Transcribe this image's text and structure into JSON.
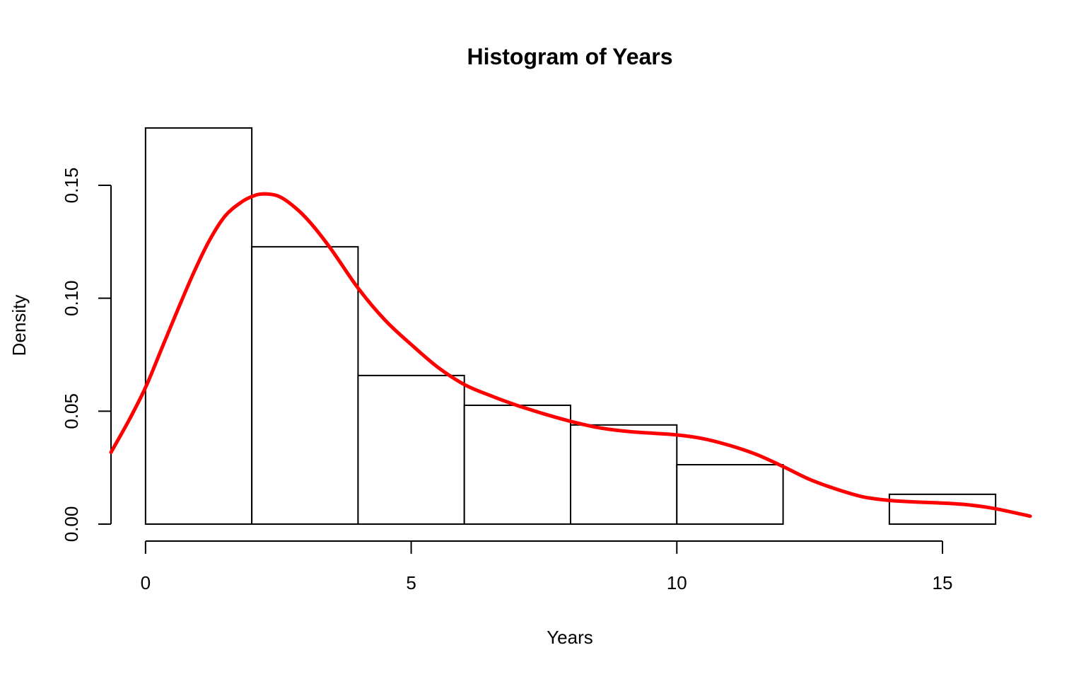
{
  "chart_data": {
    "type": "bar",
    "title": "Histogram of Years",
    "xlabel": "Years",
    "ylabel": "Density",
    "xlim": [
      -0.65,
      16.65
    ],
    "ylim": [
      0,
      0.176
    ],
    "x_ticks": [
      0,
      5,
      10,
      15
    ],
    "x_tick_labels": [
      "0",
      "5",
      "10",
      "15"
    ],
    "y_ticks": [
      0,
      0.05,
      0.1,
      0.15
    ],
    "y_tick_labels": [
      "0.00",
      "0.05",
      "0.10",
      "0.15"
    ],
    "bins": [
      {
        "from": 0,
        "to": 2,
        "density": 0.1754
      },
      {
        "from": 2,
        "to": 4,
        "density": 0.1228
      },
      {
        "from": 4,
        "to": 6,
        "density": 0.0658
      },
      {
        "from": 6,
        "to": 8,
        "density": 0.0526
      },
      {
        "from": 8,
        "to": 10,
        "density": 0.0439
      },
      {
        "from": 10,
        "to": 12,
        "density": 0.0263
      },
      {
        "from": 12,
        "to": 14,
        "density": 0
      },
      {
        "from": 14,
        "to": 16,
        "density": 0.0132
      }
    ],
    "series": [
      {
        "type": "line",
        "color": "#ff0000",
        "x": [
          -0.65,
          -0.3,
          0,
          0.3,
          0.6,
          0.9,
          1.2,
          1.5,
          1.8,
          2.0,
          2.2,
          2.5,
          2.8,
          3.1,
          3.5,
          4.0,
          4.5,
          5.0,
          5.5,
          6.0,
          6.5,
          7.0,
          7.5,
          8.0,
          8.5,
          9.0,
          9.5,
          10.0,
          10.5,
          11.0,
          11.5,
          12.0,
          12.5,
          13.0,
          13.5,
          14.0,
          14.5,
          15.0,
          15.5,
          16.0,
          16.65
        ],
        "y": [
          0.0318,
          0.0465,
          0.0605,
          0.0775,
          0.0945,
          0.111,
          0.1255,
          0.1365,
          0.1425,
          0.145,
          0.1462,
          0.1452,
          0.1405,
          0.1335,
          0.1215,
          0.1045,
          0.0905,
          0.0795,
          0.0695,
          0.0618,
          0.0568,
          0.0525,
          0.0488,
          0.0455,
          0.0428,
          0.0412,
          0.0403,
          0.0395,
          0.0378,
          0.0348,
          0.0308,
          0.0255,
          0.0198,
          0.0155,
          0.0121,
          0.0105,
          0.0098,
          0.0093,
          0.0085,
          0.0068,
          0.0035
        ]
      }
    ],
    "grid": false,
    "legend": "none"
  }
}
